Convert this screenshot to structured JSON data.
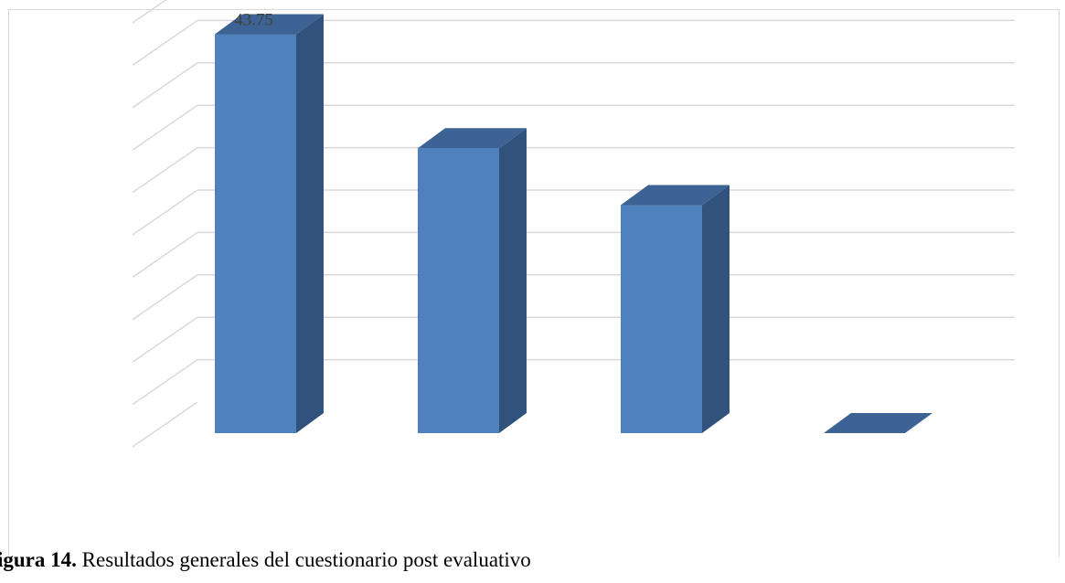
{
  "caption": {
    "label": "igura 14.",
    "text": " Resultados generales del cuestionario post evaluativo"
  },
  "colors": {
    "bar_front": "#4f81bd",
    "bar_side": "#30527c",
    "bar_top": "#3c6393",
    "grid": "#d9d9d9",
    "label": "#404040"
  },
  "chart_data": {
    "type": "bar",
    "style": "3d-clustered-column",
    "categories": [
      "",
      "",
      "",
      ""
    ],
    "values": [
      43.75,
      31.25,
      25,
      0
    ],
    "data_labels": [
      "43.75",
      null,
      null,
      null
    ],
    "ylim": [
      0,
      45
    ],
    "gridlines": 9,
    "grid": true,
    "legend": "none",
    "title": "",
    "xlabel": "",
    "ylabel": ""
  }
}
